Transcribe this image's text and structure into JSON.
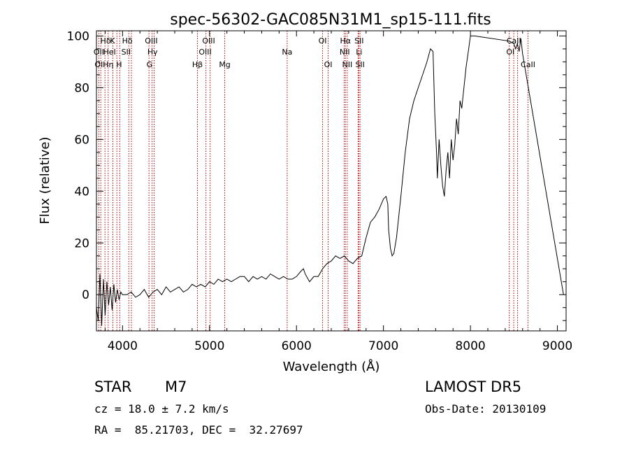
{
  "chart_data": {
    "type": "line",
    "title": "spec-56302-GAC085N31M1_sp15-111.fits",
    "xlabel": "Wavelength (Å)",
    "ylabel": "Flux (relative)",
    "xlim": [
      3700,
      9100
    ],
    "ylim": [
      -14,
      102
    ],
    "x_ticks": [
      4000,
      5000,
      6000,
      7000,
      8000,
      9000
    ],
    "y_ticks": [
      0,
      20,
      40,
      60,
      80,
      100
    ],
    "grid": false,
    "series": [
      {
        "x": [
          3700,
          3720,
          3740,
          3760,
          3780,
          3800,
          3820,
          3840,
          3860,
          3880,
          3900,
          3920,
          3940,
          3960,
          3980,
          4000,
          4050,
          4100,
          4150,
          4200,
          4250,
          4300,
          4350,
          4400,
          4450,
          4500,
          4550,
          4600,
          4650,
          4700,
          4750,
          4800,
          4850,
          4900,
          4950,
          5000,
          5050,
          5100,
          5150,
          5200,
          5250,
          5300,
          5350,
          5400,
          5450,
          5500,
          5550,
          5600,
          5650,
          5700,
          5750,
          5800,
          5850,
          5900,
          5950,
          6000,
          6050,
          6080,
          6100,
          6150,
          6200,
          6250,
          6300,
          6350,
          6400,
          6450,
          6500,
          6550,
          6600,
          6650,
          6700,
          6750,
          6800,
          6850,
          6900,
          6950,
          7000,
          7030,
          7050,
          7060,
          7080,
          7100,
          7120,
          7150,
          7200,
          7250,
          7300,
          7350,
          7400,
          7450,
          7500,
          7540,
          7570,
          7590,
          7610,
          7620,
          7640,
          7660,
          7680,
          7700,
          7720,
          7740,
          7760,
          7780,
          7800,
          7820,
          7840,
          7860,
          7880,
          7900,
          7950,
          7980,
          8000,
          8050,
          8450,
          8500,
          8520,
          8540,
          8560,
          8580,
          8600,
          9070
        ],
        "y": [
          -5,
          -10,
          8,
          -12,
          6,
          -8,
          5,
          -4,
          3,
          -6,
          4,
          -3,
          2,
          -2,
          1,
          0,
          0,
          1,
          -1,
          0,
          2,
          -1,
          1,
          2,
          0,
          3,
          1,
          2,
          3,
          1,
          2,
          4,
          3,
          4,
          3,
          5,
          4,
          6,
          5,
          6,
          5,
          6,
          7,
          7,
          5,
          7,
          6,
          7,
          6,
          8,
          7,
          6,
          7,
          6,
          6,
          7,
          9,
          10,
          8,
          5,
          7,
          7,
          10,
          12,
          13,
          15,
          14,
          15,
          13,
          12,
          14,
          15,
          22,
          28,
          30,
          33,
          37,
          38,
          35,
          25,
          18,
          15,
          16,
          22,
          38,
          55,
          68,
          75,
          80,
          85,
          90,
          95,
          94,
          70,
          55,
          45,
          60,
          50,
          42,
          38,
          48,
          55,
          45,
          60,
          52,
          58,
          68,
          62,
          75,
          72,
          88,
          95,
          100,
          100,
          98,
          97,
          95,
          97,
          94,
          99,
          93,
          0
        ]
      }
    ],
    "line_labels": [
      {
        "text": "Hδ",
        "row": 1,
        "x_label": 3805,
        "x_line": 3798
      },
      {
        "text": "K",
        "row": 1,
        "x_label": 3885,
        "x_line": 3935
      },
      {
        "text": "Hδ",
        "row": 1,
        "x_label": 4055,
        "x_line": 4102
      },
      {
        "text": "OIII",
        "row": 1,
        "x_label": 4330,
        "x_line": 4363
      },
      {
        "text": "OIII",
        "row": 1,
        "x_label": 4990,
        "x_line": 4959
      },
      {
        "text": "OI",
        "row": 1,
        "x_label": 6300,
        "x_line": 6300
      },
      {
        "text": "Hα",
        "row": 1,
        "x_label": 6563,
        "x_line": 6563
      },
      {
        "text": "SII",
        "row": 1,
        "x_label": 6720,
        "x_line": 6717
      },
      {
        "text": "CaII",
        "row": 1,
        "x_label": 8500,
        "x_line": 8498
      },
      {
        "text": "OII",
        "row": 2,
        "x_label": 3727,
        "x_line": 3727
      },
      {
        "text": "HeI",
        "row": 2,
        "x_label": 3850,
        "x_line": 3889
      },
      {
        "text": "SII",
        "row": 2,
        "x_label": 4040,
        "x_line": 4072
      },
      {
        "text": "Hγ",
        "row": 2,
        "x_label": 4345,
        "x_line": 4340
      },
      {
        "text": "OIII",
        "row": 2,
        "x_label": 4950,
        "x_line": 5007
      },
      {
        "text": "Na",
        "row": 2,
        "x_label": 5893,
        "x_line": 5893
      },
      {
        "text": "NII",
        "row": 2,
        "x_label": 6555,
        "x_line": 6548
      },
      {
        "text": "Li",
        "row": 2,
        "x_label": 6720,
        "x_line": 6708
      },
      {
        "text": "OI",
        "row": 2,
        "x_label": 8460,
        "x_line": 8446
      },
      {
        "text": "OI",
        "row": 3,
        "x_label": 3727,
        "x_line": 3750
      },
      {
        "text": "Hη",
        "row": 3,
        "x_label": 3835,
        "x_line": 3835
      },
      {
        "text": "H",
        "row": 3,
        "x_label": 3960,
        "x_line": 3968
      },
      {
        "text": "G",
        "row": 3,
        "x_label": 4310,
        "x_line": 4304
      },
      {
        "text": "Hβ",
        "row": 3,
        "x_label": 4861,
        "x_line": 4861
      },
      {
        "text": "Mg",
        "row": 3,
        "x_label": 5175,
        "x_line": 5175
      },
      {
        "text": "OI",
        "row": 3,
        "x_label": 6364,
        "x_line": 6364
      },
      {
        "text": "NII",
        "row": 3,
        "x_label": 6584,
        "x_line": 6584
      },
      {
        "text": "SII",
        "row": 3,
        "x_label": 6731,
        "x_line": 6731
      },
      {
        "text": "CaII",
        "row": 3,
        "x_label": 8662,
        "x_line": 8662
      },
      {
        "text": "",
        "row": 0,
        "x_label": 8542,
        "x_line": 8542
      }
    ]
  },
  "info": {
    "class": "STAR",
    "subclass": "M7",
    "survey": "LAMOST DR5",
    "cz": "cz = 18.0 ± 7.2 km/s",
    "obs_date": "Obs-Date: 20130109",
    "coords": "RA =  85.21703, DEC =  32.27697"
  },
  "colors": {
    "line": "#000000",
    "marker_line": "#aa0000",
    "axis": "#000000"
  }
}
